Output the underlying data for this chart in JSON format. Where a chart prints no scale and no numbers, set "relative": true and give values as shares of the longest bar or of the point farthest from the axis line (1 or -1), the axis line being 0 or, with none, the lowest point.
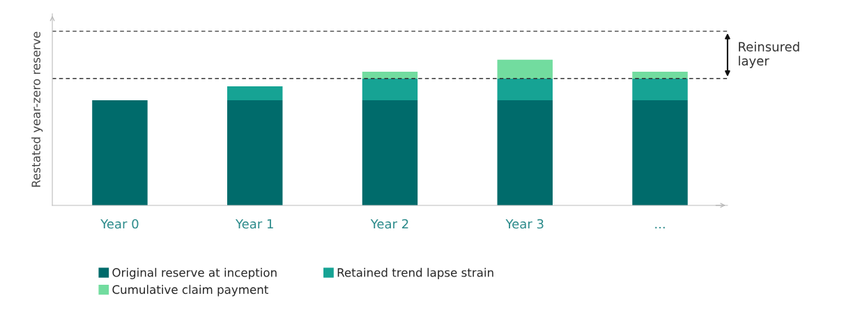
{
  "chart_data": {
    "type": "bar",
    "stacked": true,
    "relative": true,
    "ylabel": "Restated year-zero reserve",
    "categories": [
      "Year 0",
      "Year 1",
      "Year 2",
      "Year 3",
      "..."
    ],
    "series": [
      {
        "name": "Original reserve at inception",
        "color": "#006b6b",
        "values": [
          0.722,
          0.722,
          0.722,
          0.722,
          0.722
        ]
      },
      {
        "name": "Retained trend lapse strain",
        "color": "#16a394",
        "values": [
          null,
          0.096,
          0.148,
          0.148,
          0.148
        ]
      },
      {
        "name": "Cumulative claim payment",
        "color": "#72dc9f",
        "values": [
          null,
          null,
          0.048,
          0.13,
          0.048
        ]
      }
    ],
    "ref_lines": [
      {
        "axis": "y",
        "value": 0.871,
        "color": "#333333",
        "line_style": "dashed"
      },
      {
        "axis": "y",
        "value": 1.196,
        "color": "#333333",
        "line_style": "dashed"
      }
    ],
    "annotations": [
      "Reinsured\nlayer"
    ],
    "legend": "bottom",
    "grid": false
  }
}
